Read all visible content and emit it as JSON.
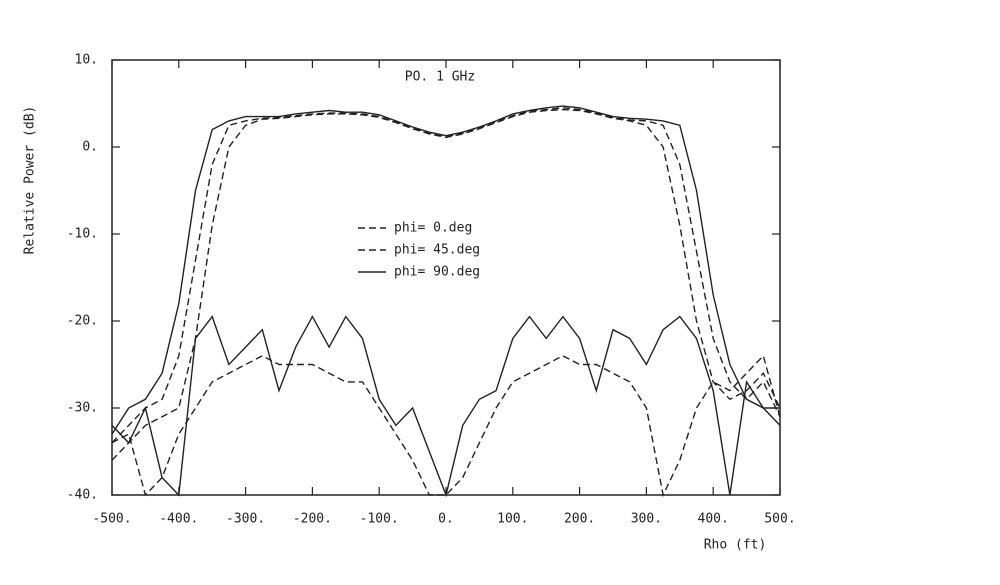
{
  "chart_data": {
    "type": "line",
    "title": "PO. 1 GHz",
    "x_label": "Rho (ft)",
    "y_label": "Relative Power (dB)",
    "xlim": [
      -500,
      500
    ],
    "ylim": [
      -40,
      10
    ],
    "xticks": [
      {
        "value": -500,
        "label": "-500."
      },
      {
        "value": -400,
        "label": "-400."
      },
      {
        "value": -300,
        "label": "-300."
      },
      {
        "value": -200,
        "label": "-200."
      },
      {
        "value": -100,
        "label": "-100."
      },
      {
        "value": 0,
        "label": "0."
      },
      {
        "value": 100,
        "label": "100."
      },
      {
        "value": 200,
        "label": "200."
      },
      {
        "value": 300,
        "label": "300."
      },
      {
        "value": 400,
        "label": "400."
      },
      {
        "value": 500,
        "label": "500."
      }
    ],
    "yticks": [
      {
        "value": 10,
        "label": "10."
      },
      {
        "value": 0,
        "label": "0."
      },
      {
        "value": -10,
        "label": "-10."
      },
      {
        "value": -20,
        "label": "-20."
      },
      {
        "value": -30,
        "label": "-30."
      },
      {
        "value": -40,
        "label": "-40."
      }
    ],
    "legend_position": "center",
    "x": [
      -500,
      -475,
      -450,
      -425,
      -400,
      -375,
      -350,
      -325,
      -300,
      -275,
      -250,
      -225,
      -200,
      -175,
      -150,
      -125,
      -100,
      -75,
      -50,
      -25,
      0,
      25,
      50,
      75,
      100,
      125,
      150,
      175,
      200,
      225,
      250,
      275,
      300,
      325,
      350,
      375,
      400,
      425,
      450,
      475,
      500
    ],
    "series": [
      {
        "name": "phi=  0.deg",
        "color": "#222222",
        "dash": true,
        "values": [
          -36,
          -34,
          -32,
          -31,
          -30,
          -22,
          -9,
          0,
          2.5,
          3.2,
          3.3,
          3.5,
          3.7,
          3.8,
          3.8,
          3.7,
          3.4,
          2.8,
          2.1,
          1.5,
          1.1,
          1.5,
          2.1,
          2.8,
          3.5,
          4,
          4.2,
          4.3,
          4.2,
          3.8,
          3.3,
          3,
          2.5,
          0,
          -9,
          -20,
          -27,
          -29,
          -28,
          -26,
          -30
        ]
      },
      {
        "name": "phi= 45.deg",
        "color": "#222222",
        "dash": true,
        "values": [
          -34,
          -32,
          -30,
          -29,
          -24,
          -13,
          -2,
          2.5,
          3,
          3.3,
          3.4,
          3.6,
          3.8,
          3.9,
          3.9,
          3.8,
          3.5,
          2.9,
          2.2,
          1.6,
          1.2,
          1.6,
          2.2,
          2.9,
          3.6,
          4.1,
          4.3,
          4.5,
          4.3,
          3.9,
          3.4,
          3.1,
          3,
          2.5,
          -2,
          -12,
          -22,
          -27,
          -29,
          -27,
          -31
        ]
      },
      {
        "name": "phi= 90.deg",
        "color": "#222222",
        "dash": false,
        "values": [
          -33,
          -30,
          -29,
          -26,
          -18,
          -5,
          2,
          3,
          3.5,
          3.5,
          3.5,
          3.8,
          4,
          4.2,
          4,
          4,
          3.7,
          3,
          2.3,
          1.7,
          1.3,
          1.7,
          2.3,
          3,
          3.8,
          4.2,
          4.5,
          4.7,
          4.5,
          4,
          3.5,
          3.3,
          3.2,
          3,
          2.5,
          -5,
          -17,
          -25,
          -29,
          -30,
          -32
        ]
      },
      {
        "color": "#222222",
        "dash": true,
        "values": [
          -34,
          -33,
          -40,
          -38,
          -33,
          -30,
          -27,
          -26,
          -25,
          -24,
          -25,
          -25,
          -25,
          -26,
          -27,
          -27,
          -30,
          -33,
          -36,
          -40,
          -40,
          -38,
          -34,
          -30,
          -27,
          -26,
          -25,
          -24,
          -25,
          -25,
          -26,
          -27,
          -30,
          -40,
          -36,
          -30,
          -27,
          -28,
          -26,
          -24,
          -31
        ]
      },
      {
        "color": "#222222",
        "dash": false,
        "values": [
          -32,
          -34,
          -30,
          -38,
          -40,
          -22,
          -19.5,
          -25,
          -23,
          -21,
          -28,
          -23,
          -19.5,
          -23,
          -19.5,
          -22,
          -29,
          -32,
          -30,
          -35,
          -40,
          -32,
          -29,
          -28,
          -22,
          -19.5,
          -22,
          -19.5,
          -22,
          -28,
          -21,
          -22,
          -25,
          -21,
          -19.5,
          -22,
          -28,
          -40,
          -27,
          -30,
          -30
        ]
      }
    ]
  }
}
